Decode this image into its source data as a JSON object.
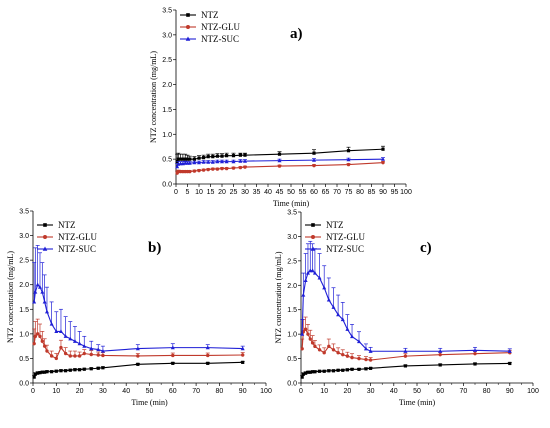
{
  "chart_data": [
    {
      "type": "line",
      "panel_label": "a)",
      "xlabel": "Time (min)",
      "ylabel": "NTZ concentration (mg/mL)",
      "xlim": [
        0,
        100
      ],
      "ylim": [
        0,
        3.5
      ],
      "xticks": [
        0,
        5,
        10,
        15,
        20,
        25,
        30,
        35,
        40,
        45,
        50,
        55,
        60,
        65,
        70,
        75,
        80,
        85,
        90,
        95,
        100
      ],
      "yticks": [
        0,
        0.5,
        1.0,
        1.5,
        2.0,
        2.5,
        3.0,
        3.5
      ],
      "legend": "top-left",
      "series": [
        {
          "name": "NTZ",
          "color": "#000000",
          "marker": "square",
          "x": [
            0.5,
            1,
            2,
            3,
            4,
            5,
            6,
            8,
            10,
            12,
            14,
            16,
            18,
            20,
            22,
            25,
            28,
            30,
            45,
            60,
            75,
            90
          ],
          "y": [
            0.45,
            0.5,
            0.5,
            0.5,
            0.5,
            0.5,
            0.5,
            0.5,
            0.52,
            0.53,
            0.55,
            0.55,
            0.56,
            0.56,
            0.57,
            0.57,
            0.58,
            0.58,
            0.6,
            0.62,
            0.67,
            0.7
          ],
          "err": [
            0.15,
            0.12,
            0.1,
            0.1,
            0.1,
            0.08,
            0.06,
            0.05,
            0.05,
            0.05,
            0.05,
            0.05,
            0.05,
            0.05,
            0.05,
            0.05,
            0.04,
            0.04,
            0.05,
            0.07,
            0.07,
            0.06
          ]
        },
        {
          "name": "NTZ-GLU",
          "color": "#c0392b",
          "marker": "circle",
          "x": [
            0.5,
            1,
            2,
            3,
            4,
            5,
            6,
            8,
            10,
            12,
            14,
            16,
            18,
            20,
            22,
            25,
            28,
            30,
            45,
            60,
            75,
            90
          ],
          "y": [
            0.22,
            0.25,
            0.25,
            0.25,
            0.25,
            0.25,
            0.25,
            0.26,
            0.27,
            0.28,
            0.29,
            0.3,
            0.3,
            0.31,
            0.31,
            0.32,
            0.33,
            0.34,
            0.36,
            0.37,
            0.39,
            0.43
          ],
          "err": [
            0.04,
            0.03,
            0.02,
            0.02,
            0.02,
            0.02,
            0.02,
            0.02,
            0.02,
            0.02,
            0.02,
            0.02,
            0.02,
            0.02,
            0.02,
            0.02,
            0.02,
            0.02,
            0.02,
            0.02,
            0.02,
            0.02
          ]
        },
        {
          "name": "NTZ-SUC",
          "color": "#1f1fd6",
          "marker": "triangle",
          "x": [
            0.5,
            1,
            2,
            3,
            4,
            5,
            6,
            8,
            10,
            12,
            14,
            16,
            18,
            20,
            22,
            25,
            28,
            30,
            45,
            60,
            75,
            90
          ],
          "y": [
            0.35,
            0.4,
            0.41,
            0.41,
            0.42,
            0.42,
            0.42,
            0.43,
            0.43,
            0.44,
            0.44,
            0.44,
            0.45,
            0.45,
            0.45,
            0.45,
            0.46,
            0.46,
            0.47,
            0.48,
            0.49,
            0.5
          ],
          "err": [
            0.06,
            0.05,
            0.04,
            0.04,
            0.04,
            0.03,
            0.03,
            0.03,
            0.03,
            0.03,
            0.03,
            0.03,
            0.03,
            0.03,
            0.03,
            0.03,
            0.03,
            0.03,
            0.03,
            0.03,
            0.03,
            0.03
          ]
        }
      ]
    },
    {
      "type": "line",
      "panel_label": "b)",
      "xlabel": "Time (min)",
      "ylabel": "NTZ concentration (mg/mL)",
      "xlim": [
        0,
        100
      ],
      "ylim": [
        0,
        3.5
      ],
      "xticks": [
        0,
        10,
        20,
        30,
        40,
        50,
        60,
        70,
        80,
        90,
        100
      ],
      "yticks": [
        0,
        0.5,
        1.0,
        1.5,
        2.0,
        2.5,
        3.0,
        3.5
      ],
      "legend": "top-left",
      "series": [
        {
          "name": "NTZ",
          "color": "#000000",
          "marker": "square",
          "x": [
            0.5,
            1,
            2,
            3,
            4,
            5,
            6,
            8,
            10,
            12,
            14,
            16,
            18,
            20,
            22,
            25,
            28,
            30,
            45,
            60,
            75,
            90
          ],
          "y": [
            0.12,
            0.18,
            0.2,
            0.21,
            0.22,
            0.22,
            0.23,
            0.23,
            0.24,
            0.25,
            0.25,
            0.26,
            0.27,
            0.27,
            0.28,
            0.29,
            0.3,
            0.31,
            0.38,
            0.4,
            0.4,
            0.42
          ],
          "err": [
            0.03,
            0.03,
            0.03,
            0.02,
            0.02,
            0.02,
            0.02,
            0.02,
            0.02,
            0.02,
            0.02,
            0.02,
            0.02,
            0.02,
            0.02,
            0.02,
            0.02,
            0.02,
            0.02,
            0.02,
            0.02,
            0.02
          ]
        },
        {
          "name": "NTZ-GLU",
          "color": "#c0392b",
          "marker": "circle",
          "x": [
            0.5,
            1,
            2,
            3,
            4,
            5,
            6,
            8,
            10,
            12,
            14,
            16,
            18,
            20,
            22,
            25,
            28,
            30,
            45,
            60,
            75,
            90
          ],
          "y": [
            0.8,
            0.95,
            1.0,
            0.95,
            0.85,
            0.75,
            0.65,
            0.55,
            0.5,
            0.72,
            0.6,
            0.55,
            0.55,
            0.55,
            0.6,
            0.58,
            0.57,
            0.56,
            0.55,
            0.56,
            0.56,
            0.57
          ],
          "err": [
            0.3,
            0.3,
            0.3,
            0.25,
            0.2,
            0.15,
            0.12,
            0.1,
            0.1,
            0.15,
            0.12,
            0.1,
            0.1,
            0.08,
            0.08,
            0.08,
            0.06,
            0.06,
            0.05,
            0.05,
            0.05,
            0.05
          ]
        },
        {
          "name": "NTZ-SUC",
          "color": "#1f1fd6",
          "marker": "triangle",
          "x": [
            0.5,
            1,
            2,
            3,
            4,
            5,
            6,
            8,
            10,
            12,
            14,
            16,
            18,
            20,
            22,
            25,
            28,
            30,
            45,
            60,
            75,
            90
          ],
          "y": [
            1.65,
            1.85,
            2.0,
            1.95,
            1.85,
            1.65,
            1.45,
            1.2,
            1.05,
            1.05,
            0.95,
            0.9,
            0.85,
            0.8,
            0.75,
            0.7,
            0.68,
            0.65,
            0.7,
            0.72,
            0.72,
            0.7
          ],
          "err": [
            0.8,
            0.9,
            0.8,
            0.7,
            0.6,
            0.55,
            0.5,
            0.45,
            0.4,
            0.45,
            0.4,
            0.35,
            0.3,
            0.25,
            0.2,
            0.15,
            0.1,
            0.1,
            0.08,
            0.08,
            0.06,
            0.05
          ]
        }
      ]
    },
    {
      "type": "line",
      "panel_label": "c)",
      "xlabel": "Time (min)",
      "ylabel": "NTZ concentration (mg/mL)",
      "xlim": [
        0,
        100
      ],
      "ylim": [
        0,
        3.5
      ],
      "xticks": [
        0,
        10,
        20,
        30,
        40,
        50,
        60,
        70,
        80,
        90,
        100
      ],
      "yticks": [
        0,
        0.5,
        1.0,
        1.5,
        2.0,
        2.5,
        3.0,
        3.5
      ],
      "legend": "top-left",
      "series": [
        {
          "name": "NTZ",
          "color": "#000000",
          "marker": "square",
          "x": [
            0.5,
            1,
            2,
            3,
            4,
            5,
            6,
            8,
            10,
            12,
            14,
            16,
            18,
            20,
            22,
            25,
            28,
            30,
            45,
            60,
            75,
            90
          ],
          "y": [
            0.12,
            0.18,
            0.2,
            0.22,
            0.22,
            0.23,
            0.23,
            0.24,
            0.24,
            0.25,
            0.25,
            0.26,
            0.26,
            0.27,
            0.28,
            0.28,
            0.29,
            0.3,
            0.35,
            0.37,
            0.39,
            0.4
          ],
          "err": [
            0.03,
            0.03,
            0.03,
            0.02,
            0.02,
            0.02,
            0.02,
            0.02,
            0.02,
            0.02,
            0.02,
            0.02,
            0.02,
            0.02,
            0.02,
            0.02,
            0.02,
            0.02,
            0.02,
            0.02,
            0.02,
            0.02
          ]
        },
        {
          "name": "NTZ-GLU",
          "color": "#c0392b",
          "marker": "circle",
          "x": [
            0.5,
            1,
            2,
            3,
            4,
            5,
            6,
            8,
            10,
            12,
            14,
            16,
            18,
            20,
            22,
            25,
            28,
            30,
            45,
            60,
            75,
            90
          ],
          "y": [
            0.7,
            1.05,
            1.1,
            1.0,
            0.9,
            0.82,
            0.75,
            0.68,
            0.62,
            0.75,
            0.68,
            0.62,
            0.58,
            0.55,
            0.52,
            0.5,
            0.48,
            0.47,
            0.55,
            0.58,
            0.6,
            0.62
          ],
          "err": [
            0.2,
            0.25,
            0.25,
            0.2,
            0.18,
            0.15,
            0.12,
            0.1,
            0.1,
            0.15,
            0.12,
            0.1,
            0.1,
            0.08,
            0.08,
            0.06,
            0.06,
            0.05,
            0.05,
            0.05,
            0.05,
            0.05
          ]
        },
        {
          "name": "NTZ-SUC",
          "color": "#1f1fd6",
          "marker": "triangle",
          "x": [
            0.5,
            1,
            2,
            3,
            4,
            5,
            6,
            8,
            10,
            12,
            14,
            16,
            18,
            20,
            22,
            25,
            28,
            30,
            45,
            60,
            75,
            90
          ],
          "y": [
            1.0,
            1.8,
            2.1,
            2.25,
            2.3,
            2.3,
            2.25,
            2.15,
            1.95,
            1.7,
            1.55,
            1.4,
            1.3,
            1.1,
            0.95,
            0.85,
            0.7,
            0.65,
            0.65,
            0.65,
            0.67,
            0.65
          ],
          "err": [
            0.3,
            0.45,
            0.55,
            0.6,
            0.6,
            0.55,
            0.5,
            0.5,
            0.45,
            0.45,
            0.4,
            0.4,
            0.35,
            0.3,
            0.25,
            0.2,
            0.1,
            0.08,
            0.06,
            0.06,
            0.06,
            0.05
          ]
        }
      ]
    }
  ]
}
